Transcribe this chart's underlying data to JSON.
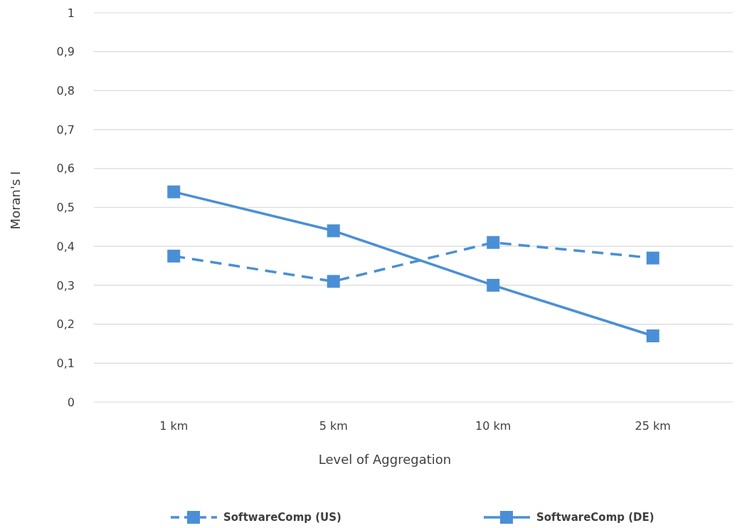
{
  "chart_data": {
    "type": "line",
    "xlabel": "Level of Aggregation",
    "ylabel": "Moran's I",
    "categories": [
      "1 km",
      "5 km",
      "10 km",
      "25 km"
    ],
    "series": [
      {
        "name": "SoftwareComp (US)",
        "color": "#4a8fd6",
        "values": [
          0.375,
          0.31,
          0.41,
          0.37
        ],
        "line_style": "dashed"
      },
      {
        "name": "SoftwareComp (DE)",
        "color": "#4a8fd6",
        "values": [
          0.54,
          0.44,
          0.3,
          0.17
        ],
        "line_style": "solid"
      }
    ],
    "ylim": [
      0,
      1
    ],
    "yticks": [
      0,
      {
        "value": 0.1,
        "label": "0,1"
      },
      {
        "value": 0.2,
        "label": "0,2"
      },
      {
        "value": 0.3,
        "label": "0,3"
      },
      {
        "value": 0.4,
        "label": "0,4"
      },
      {
        "value": 0.5,
        "label": "0,5"
      },
      {
        "value": 0.6,
        "label": "0,6"
      },
      {
        "value": 0.7,
        "label": "0,7"
      },
      {
        "value": 0.8,
        "label": "0,8"
      },
      {
        "value": 0.9,
        "label": "0,9"
      },
      1
    ],
    "grid": "y",
    "legend": "bottom",
    "marker": "square"
  }
}
